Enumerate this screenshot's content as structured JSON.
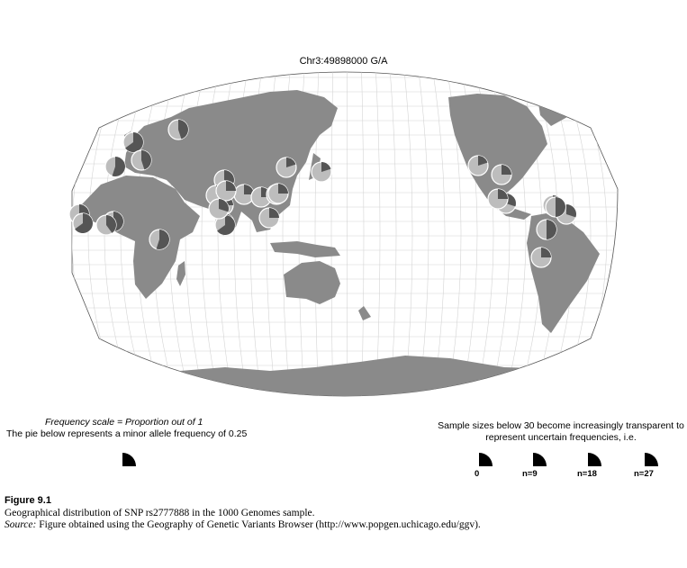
{
  "map": {
    "title": "Chr3:49898000 G/A",
    "colors": {
      "land": "#8a8a8a",
      "ocean": "#ffffff",
      "graticule": "#d4d4d4",
      "outline": "#555555",
      "pie_major": "#bdbdbd",
      "pie_minor": "#555555",
      "pie_border": "#ffffff"
    },
    "pies": [
      {
        "name": "pie-pop-01",
        "minor_freq": 0.65
      },
      {
        "name": "pie-pop-02",
        "minor_freq": 0.45
      },
      {
        "name": "pie-pop-03",
        "minor_freq": 0.45
      },
      {
        "name": "pie-pop-04",
        "minor_freq": 0.55
      },
      {
        "name": "pie-pop-05",
        "minor_freq": 0.6
      },
      {
        "name": "pie-pop-06",
        "minor_freq": 0.65
      },
      {
        "name": "pie-pop-07",
        "minor_freq": 0.55
      },
      {
        "name": "pie-pop-08",
        "minor_freq": 0.4
      },
      {
        "name": "pie-pop-09",
        "minor_freq": 0.55
      },
      {
        "name": "pie-pop-10",
        "minor_freq": 0.3
      },
      {
        "name": "pie-pop-11",
        "minor_freq": 0.25
      },
      {
        "name": "pie-pop-12",
        "minor_freq": 0.2
      },
      {
        "name": "pie-pop-13",
        "minor_freq": 0.25
      },
      {
        "name": "pie-pop-14",
        "minor_freq": 0.2
      },
      {
        "name": "pie-pop-15",
        "minor_freq": 0.25
      },
      {
        "name": "pie-pop-16",
        "minor_freq": 0.25
      },
      {
        "name": "pie-pop-17",
        "minor_freq": 0.2
      },
      {
        "name": "pie-pop-18",
        "minor_freq": 0.2
      },
      {
        "name": "pie-pop-19",
        "minor_freq": 0.25
      },
      {
        "name": "pie-pop-20",
        "minor_freq": 0.2
      },
      {
        "name": "pie-pop-21",
        "minor_freq": 0.2
      },
      {
        "name": "pie-pop-22",
        "minor_freq": 0.25
      },
      {
        "name": "pie-pop-23",
        "minor_freq": 0.3
      },
      {
        "name": "pie-pop-24",
        "minor_freq": 0.3
      },
      {
        "name": "pie-pop-25",
        "minor_freq": 0.3
      },
      {
        "name": "pie-pop-26",
        "minor_freq": 0.5
      },
      {
        "name": "pie-pop-27",
        "minor_freq": 0.25
      },
      {
        "name": "pie-pop-28",
        "minor_freq": 0.25
      },
      {
        "name": "pie-pop-29",
        "minor_freq": 0.65
      },
      {
        "name": "pie-pop-30",
        "minor_freq": 0.3
      },
      {
        "name": "pie-pop-31",
        "minor_freq": 0.5
      },
      {
        "name": "pie-pop-32",
        "minor_freq": 0.25
      }
    ]
  },
  "legend": {
    "scale_title": "Frequency scale = Proportion out of  1",
    "scale_desc": "The pie below represents a minor allele frequency of 0.25",
    "example_freq": 0.25,
    "sample_note": "Sample sizes below 30 become increasingly transparent to represent uncertain frequencies, i.e.",
    "samples": [
      {
        "label": "0",
        "opacity": 1.0
      },
      {
        "label": "n=9",
        "opacity": 1.0
      },
      {
        "label": "n=18",
        "opacity": 1.0
      },
      {
        "label": "n=27",
        "opacity": 1.0
      }
    ]
  },
  "caption": {
    "figure_label": "Figure 9.1",
    "line1": "Geographical distribution of SNP rs2777888 in the 1000 Genomes sample.",
    "source_word": "Source:",
    "line2": " Figure obtained using the Geography of Genetic Variants Browser (http://www.popgen.uchicago.edu/ggv)."
  }
}
